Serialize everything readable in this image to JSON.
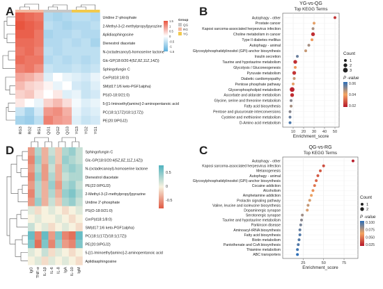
{
  "panels": {
    "A": {
      "letter": "A",
      "columns": [
        "RG3",
        "RG2",
        "RG1",
        "QG1",
        "QG2",
        "QG3",
        "YG3",
        "YG2",
        "YG1"
      ],
      "group_colors": [
        "#f2b8a0",
        "#f2b8a0",
        "#f2b8a0",
        "#c7c7c7",
        "#c7c7c7",
        "#c7c7c7",
        "#f2c94c",
        "#f2c94c",
        "#f2c94c"
      ],
      "legend_scale_title": "",
      "legend_scale_ticks": [
        "1.5",
        "1",
        "0.5",
        "0",
        "-0.5",
        "-1",
        "-1.5"
      ],
      "legend_group_title": "Group",
      "legend_groups": [
        {
          "name": "QG",
          "color": "#c7c7c7"
        },
        {
          "name": "RG",
          "color": "#f2b8a0"
        },
        {
          "name": "YG",
          "color": "#f2c94c"
        }
      ],
      "rows": [
        {
          "label": "Uridine 2'-phosphate",
          "values": [
            1.4,
            1.3,
            1.2,
            -0.7,
            -0.8,
            -0.7,
            -0.6,
            -0.6,
            -0.7
          ]
        },
        {
          "label": "2-Methyl-3-(2-methylpropyl)pyrazine",
          "values": [
            1.5,
            1.4,
            1.3,
            -0.6,
            -0.7,
            -0.8,
            -0.7,
            -0.7,
            -0.6
          ]
        },
        {
          "label": "Aplidiasphingosine",
          "values": [
            1.4,
            1.4,
            1.2,
            -0.8,
            -0.7,
            -0.7,
            -0.6,
            -0.7,
            -0.7
          ]
        },
        {
          "label": "Dienestrol diacetate",
          "values": [
            1.3,
            1.3,
            1.2,
            -0.7,
            -0.7,
            -0.6,
            -0.7,
            -0.6,
            -0.8
          ]
        },
        {
          "label": "N-(octadecanoyl)-homoserine lactone",
          "values": [
            1.2,
            1.3,
            1.1,
            -0.6,
            -0.7,
            -0.6,
            -0.6,
            -0.6,
            -0.6
          ]
        },
        {
          "label": "Glc-GP(18:0/20:4(5Z,8Z,11Z,14Z))",
          "values": [
            1.3,
            1.2,
            1.2,
            -0.7,
            -0.6,
            -0.7,
            -0.6,
            -0.7,
            -0.6
          ]
        },
        {
          "label": "Sphingofungin C",
          "values": [
            1.1,
            1.2,
            1.0,
            -0.5,
            -0.6,
            -0.6,
            -0.5,
            -0.6,
            -0.5
          ]
        },
        {
          "label": "CerP(d18:1/8:0)",
          "values": [
            0.8,
            0.7,
            0.5,
            -0.3,
            0.0,
            -0.2,
            -0.3,
            -0.4,
            -0.2
          ]
        },
        {
          "label": "SM(d17:1/6 keto-PGF1alpha)",
          "values": [
            0.6,
            0.4,
            0.3,
            0.1,
            -0.2,
            0.0,
            -0.4,
            -0.5,
            -0.3
          ]
        },
        {
          "label": "PS(O-18:0/21:0)",
          "values": [
            0.4,
            0.5,
            0.2,
            0.0,
            0.2,
            -0.3,
            -0.2,
            -0.5,
            -0.4
          ]
        },
        {
          "label": "5-[(1-Iminoethyl)amino]-2-aminopentanoic acid",
          "values": [
            0.2,
            0.0,
            -0.2,
            0.4,
            0.6,
            0.3,
            -0.1,
            -0.3,
            -0.2
          ]
        },
        {
          "label": "PC(18:1(17Z)/18:1(17Z))",
          "values": [
            -0.5,
            -0.8,
            -0.4,
            0.9,
            1.0,
            0.7,
            -0.2,
            -0.4,
            -0.3
          ]
        },
        {
          "label": "PE(20:0/PGJ2)",
          "values": [
            -0.8,
            -0.9,
            -0.6,
            1.1,
            0.9,
            0.8,
            -0.3,
            -0.5,
            -0.4
          ]
        }
      ]
    },
    "B": {
      "letter": "B",
      "title": "YG-vs-QG",
      "subtitle": "Top KEGG Terms",
      "xlabel": "Enrichment_score",
      "xticks": [
        10,
        20,
        30,
        40,
        50
      ],
      "xlim": [
        0,
        54
      ],
      "legend_count_title": "Count",
      "legend_counts": [
        1,
        2,
        3
      ],
      "legend_p_title": "P -value",
      "legend_p_ticks": [
        "0.06",
        "0.04",
        "0.02"
      ],
      "legend_p_range": [
        0.005,
        0.07
      ],
      "terms": [
        {
          "label": "Autophagy - other",
          "score": 50,
          "count": 1,
          "p": 0.012
        },
        {
          "label": "Prostate cancer",
          "score": 30,
          "count": 1,
          "p": 0.04
        },
        {
          "label": "Kaposi sarcoma-associated herpesvirus infection",
          "score": 29,
          "count": 1,
          "p": 0.05
        },
        {
          "label": "Choline metabolism in cancer",
          "score": 29,
          "count": 2,
          "p": 0.01
        },
        {
          "label": "Type II diabetes mellitus",
          "score": 28,
          "count": 1,
          "p": 0.035
        },
        {
          "label": "Autophagy - animal",
          "score": 25,
          "count": 1,
          "p": 0.05
        },
        {
          "label": "Glycosylphosphatidylinositol (GPI)-anchor biosynthesis",
          "score": 22,
          "count": 1,
          "p": 0.045
        },
        {
          "label": "Insulin secretion",
          "score": 14,
          "count": 1,
          "p": 0.06
        },
        {
          "label": "Taurine and hypotaurine metabolism",
          "score": 12,
          "count": 2,
          "p": 0.01
        },
        {
          "label": "Glycolysis / Gluconeogenesis",
          "score": 12,
          "count": 1,
          "p": 0.035
        },
        {
          "label": "Pyruvate metabolism",
          "score": 11,
          "count": 2,
          "p": 0.012
        },
        {
          "label": "Diabetic cardiomyopathy",
          "score": 11,
          "count": 1,
          "p": 0.045
        },
        {
          "label": "Pentose phosphate pathway",
          "score": 10,
          "count": 1,
          "p": 0.04
        },
        {
          "label": "Glycerophospholipid metabolism",
          "score": 9,
          "count": 3,
          "p": 0.008
        },
        {
          "label": "Ascorbate and aldarate metabolism",
          "score": 9,
          "count": 2,
          "p": 0.01
        },
        {
          "label": "Glycine, serine and threonine metabolism",
          "score": 8,
          "count": 1,
          "p": 0.055
        },
        {
          "label": "Fatty acid biosynthesis",
          "score": 8,
          "count": 1,
          "p": 0.05
        },
        {
          "label": "Pentose and glucuronate interconversions",
          "score": 7,
          "count": 1,
          "p": 0.055
        },
        {
          "label": "Cysteine and methionine metabolism",
          "score": 7,
          "count": 1,
          "p": 0.06
        },
        {
          "label": "D-Amino acid metabolism",
          "score": 7,
          "count": 1,
          "p": 0.065
        }
      ]
    },
    "C": {
      "letter": "C",
      "title": "QG-vs-RG",
      "subtitle": "Top KEGG Terms",
      "xlabel": "Enrichment_score",
      "xticks": [
        25,
        50,
        75
      ],
      "xlim": [
        0,
        92
      ],
      "legend_count_title": "Count",
      "legend_counts": [
        1,
        2
      ],
      "legend_p_title": "P -value",
      "legend_p_ticks": [
        "0.100",
        "0.075",
        "0.050",
        "0.025"
      ],
      "legend_p_range": [
        0.005,
        0.11
      ],
      "terms": [
        {
          "label": "Autophagy - other",
          "score": 86,
          "count": 1,
          "p": 0.008
        },
        {
          "label": "Kaposi sarcoma-associated herpesvirus infection",
          "score": 50,
          "count": 1,
          "p": 0.025
        },
        {
          "label": "Melanogenesis",
          "score": 46,
          "count": 1,
          "p": 0.03
        },
        {
          "label": "Autophagy - animal",
          "score": 43,
          "count": 1,
          "p": 0.03
        },
        {
          "label": "Glycosylphosphatidylinositol (GPI)-anchor biosynthesis",
          "score": 41,
          "count": 1,
          "p": 0.035
        },
        {
          "label": "Cocaine addiction",
          "score": 39,
          "count": 1,
          "p": 0.04
        },
        {
          "label": "Alcoholism",
          "score": 37,
          "count": 1,
          "p": 0.05
        },
        {
          "label": "Amphetamine addiction",
          "score": 35,
          "count": 1,
          "p": 0.06
        },
        {
          "label": "Prolactin signaling pathway",
          "score": 33,
          "count": 1,
          "p": 0.065
        },
        {
          "label": "Valine, leucine and isoleucine biosynthesis",
          "score": 31,
          "count": 1,
          "p": 0.07
        },
        {
          "label": "Dopaminergic synapse",
          "score": 30,
          "count": 1,
          "p": 0.065
        },
        {
          "label": "Serotonergic synapse",
          "score": 24,
          "count": 1,
          "p": 0.08
        },
        {
          "label": "Taurine and hypotaurine metabolism",
          "score": 23,
          "count": 1,
          "p": 0.085
        },
        {
          "label": "Parkinson disease",
          "score": 22,
          "count": 1,
          "p": 0.09
        },
        {
          "label": "Aminoacyl-tRNA biosynthesis",
          "score": 21,
          "count": 1,
          "p": 0.095
        },
        {
          "label": "Fatty acid biosynthesis",
          "score": 21,
          "count": 1,
          "p": 0.1
        },
        {
          "label": "Biotin metabolism",
          "score": 20,
          "count": 1,
          "p": 0.1
        },
        {
          "label": "Pantothenate and CoA biosynthesis",
          "score": 19,
          "count": 1,
          "p": 0.1
        },
        {
          "label": "Thiamine metabolism",
          "score": 18,
          "count": 1,
          "p": 0.105
        },
        {
          "label": "ABC transporters",
          "score": 18,
          "count": 1,
          "p": 0.11
        }
      ]
    },
    "D": {
      "letter": "D",
      "columns": [
        "IgG",
        "TNF-α",
        "IL-1β",
        "IL-6",
        "IL-8",
        "IgA",
        "IL-10",
        "IgM"
      ],
      "legend_ticks": [
        "0.5",
        "0",
        "-0.5"
      ],
      "rows": [
        {
          "label": "Sphingofungin C",
          "values": [
            -0.4,
            0.3,
            -0.3,
            0.2,
            -0.2,
            0.3,
            0.4,
            0.2
          ]
        },
        {
          "label": "Glc-GP(18:0/20:4(5Z,8Z,11Z,14Z))",
          "values": [
            -0.5,
            0.4,
            -0.3,
            0.3,
            -0.2,
            0.4,
            0.3,
            0.2
          ]
        },
        {
          "label": "N-(octadecanoyl)-homoserine lactone",
          "values": [
            -0.4,
            0.3,
            -0.4,
            0.2,
            -0.3,
            0.3,
            0.4,
            0.3
          ]
        },
        {
          "label": "Dienestrol diacetate",
          "values": [
            -0.5,
            0.4,
            -0.4,
            0.3,
            -0.3,
            0.2,
            0.3,
            0.3
          ]
        },
        {
          "label": "PE(22:0/PGJ2)",
          "values": [
            -0.4,
            0.3,
            -0.3,
            0.4,
            -0.4,
            0.3,
            0.4,
            0.2
          ]
        },
        {
          "label": "2-Methyl-3-(2-methylpropyl)pyrazine",
          "values": [
            -0.5,
            0.3,
            -0.3,
            0.3,
            -0.3,
            0.4,
            0.5,
            0.3
          ]
        },
        {
          "label": "Uridine 2'-phosphate",
          "values": [
            -0.4,
            0.4,
            -0.3,
            0.2,
            -0.2,
            0.3,
            0.4,
            0.2
          ]
        },
        {
          "label": "PS(O-18:0/21:0)",
          "values": [
            0.1,
            -0.1,
            0.0,
            0.1,
            0.0,
            -0.1,
            0.0,
            0.1
          ]
        },
        {
          "label": "CerP(d18:1/8:0)",
          "values": [
            0.0,
            0.1,
            0.0,
            0.0,
            0.1,
            0.0,
            -0.1,
            0.0
          ]
        },
        {
          "label": "SM(d17:1/6 keto-PGF1alpha)",
          "values": [
            0.2,
            0.0,
            0.1,
            -0.1,
            0.0,
            0.1,
            0.0,
            -0.1
          ]
        },
        {
          "label": "PC(18:1(17Z)/18:1(17Z))",
          "values": [
            0.6,
            -0.5,
            0.6,
            -0.4,
            0.5,
            -0.5,
            -0.6,
            0.6
          ]
        },
        {
          "label": "PE(20:0/PGJ2)",
          "values": [
            0.5,
            -0.6,
            0.5,
            -0.5,
            0.4,
            -0.4,
            -0.5,
            0.5
          ]
        },
        {
          "label": "5-[(1-Iminoethyl)amino]-2-aminopentanoic acid",
          "values": [
            0.1,
            0.0,
            0.2,
            -0.1,
            0.1,
            0.0,
            -0.1,
            0.0
          ]
        },
        {
          "label": "Aplidiasphingosine",
          "values": [
            0.0,
            0.1,
            -0.1,
            0.1,
            0.0,
            0.1,
            0.0,
            -0.1
          ]
        }
      ]
    }
  },
  "colors": {
    "heat_high": "#e8553f",
    "heat_mid": "#ffffff",
    "heat_low": "#5aaedc",
    "corr_high": "#4fb3bf",
    "corr_mid": "#f7f2df",
    "corr_low": "#e05a44",
    "p_low": "#b5172a",
    "p_mid": "#f4a460",
    "p_high": "#2c6fb8",
    "dendro": "#555555"
  },
  "chart_data": [
    {
      "type": "heatmap",
      "title": "",
      "columns": [
        "RG3",
        "RG2",
        "RG1",
        "QG1",
        "QG2",
        "QG3",
        "YG3",
        "YG2",
        "YG1"
      ],
      "scale_range": [
        -1.5,
        1.5
      ]
    },
    {
      "type": "scatter",
      "title": "YG-vs-QG",
      "subtitle": "Top KEGG Terms",
      "xlabel": "Enrichment_score",
      "ylabel": "",
      "xlim": [
        0,
        54
      ]
    },
    {
      "type": "scatter",
      "title": "QG-vs-RG",
      "subtitle": "Top KEGG Terms",
      "xlabel": "Enrichment_score",
      "ylabel": "",
      "xlim": [
        0,
        92
      ]
    },
    {
      "type": "heatmap",
      "title": "",
      "columns": [
        "IgG",
        "TNF-α",
        "IL-1β",
        "IL-6",
        "IL-8",
        "IgA",
        "IL-10",
        "IgM"
      ],
      "scale_range": [
        -0.7,
        0.7
      ]
    }
  ]
}
